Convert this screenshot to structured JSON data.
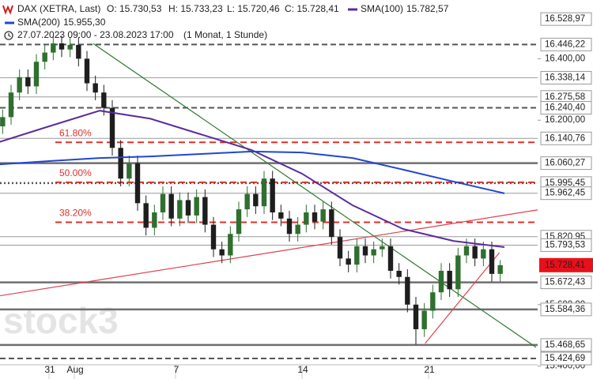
{
  "chart_data": {
    "type": "candlestick",
    "header": {
      "instrument": "DAX (XETRA, Last)",
      "ohlc": [
        "O: 15.730,53",
        "H: 15.733,23",
        "L: 15.720,46",
        "C: 15.728,41"
      ],
      "range": "27.07.2023 09:00 - 23.08.2023 17:00",
      "period": "(1 Monat, 1 Stunde)"
    },
    "watermark": "stock3",
    "up_color": "#2f6f2f",
    "down_color": "#1e1e1e",
    "open": [
      16180,
      16210,
      16290,
      16340,
      16310,
      16390,
      16420,
      16450,
      16430,
      16445,
      16400,
      16320,
      16290,
      16240,
      16110,
      16010,
      16060,
      15930,
      15850,
      15900,
      15960,
      15880,
      15940,
      15890,
      15950,
      15860,
      15780,
      15760,
      15830,
      15910,
      15960,
      15920,
      16010,
      15900,
      15880,
      15830,
      15860,
      15900,
      15870,
      15910,
      15820,
      15750,
      15730,
      15790,
      15760,
      15780,
      15790,
      15710,
      15690,
      15600,
      15520,
      15580,
      15640,
      15710,
      15650,
      15760,
      15790,
      15750,
      15780,
      15700
    ],
    "high": [
      16235,
      16315,
      16365,
      16365,
      16415,
      16445,
      16475,
      16475,
      16470,
      16470,
      16425,
      16345,
      16315,
      16265,
      16135,
      16085,
      16085,
      15955,
      15925,
      15985,
      15985,
      15965,
      15965,
      15975,
      15975,
      15885,
      15805,
      15855,
      15935,
      15985,
      15985,
      16035,
      16035,
      15925,
      15905,
      15885,
      15925,
      15925,
      15935,
      15935,
      15845,
      15775,
      15815,
      15815,
      15805,
      15815,
      15815,
      15735,
      15715,
      15625,
      15605,
      15665,
      15735,
      15735,
      15785,
      15815,
      15815,
      15805,
      15805,
      15745
    ],
    "low": [
      16155,
      16185,
      16265,
      16285,
      16285,
      16365,
      16395,
      16405,
      16405,
      16375,
      16295,
      16265,
      16215,
      16085,
      15985,
      15985,
      15905,
      15825,
      15825,
      15875,
      15855,
      15855,
      15865,
      15865,
      15835,
      15755,
      15735,
      15735,
      15805,
      15885,
      15895,
      15895,
      15875,
      15855,
      15805,
      15805,
      15835,
      15845,
      15845,
      15795,
      15725,
      15705,
      15705,
      15735,
      15735,
      15755,
      15685,
      15665,
      15575,
      15470,
      15495,
      15555,
      15615,
      15625,
      15625,
      15735,
      15725,
      15725,
      15675,
      15675
    ],
    "close": [
      16210,
      16290,
      16340,
      16310,
      16390,
      16420,
      16450,
      16430,
      16445,
      16400,
      16320,
      16290,
      16240,
      16110,
      16010,
      16060,
      15930,
      15850,
      15900,
      15960,
      15880,
      15940,
      15890,
      15950,
      15860,
      15780,
      15760,
      15830,
      15910,
      15960,
      15920,
      16010,
      15900,
      15880,
      15830,
      15860,
      15900,
      15870,
      15910,
      15820,
      15750,
      15730,
      15790,
      15760,
      15780,
      15790,
      15710,
      15690,
      15600,
      15520,
      15580,
      15640,
      15710,
      15650,
      15760,
      15790,
      15750,
      15780,
      15700,
      15728.41
    ],
    "xlim": [
      0,
      60
    ],
    "ylim": [
      15358,
      16591
    ],
    "xticks": [
      {
        "value": 6,
        "label": "31"
      },
      {
        "value": 9,
        "label": "Aug"
      },
      {
        "value": 21,
        "label": "7"
      },
      {
        "value": 36,
        "label": "14"
      },
      {
        "value": 51,
        "label": "21"
      }
    ],
    "yticks": [
      {
        "value": 16400,
        "label": "16.400,00"
      },
      {
        "value": 16200,
        "label": "16.200,00"
      },
      {
        "value": 15600,
        "label": "15.600,00"
      },
      {
        "value": 15400,
        "label": "15.400,00"
      }
    ],
    "levels": [
      {
        "value": 16528.97,
        "label": "16.528,97",
        "style": "none"
      },
      {
        "value": 16446.22,
        "label": "16.446,22",
        "style": "dashed"
      },
      {
        "value": 16338.14,
        "label": "16.338,14",
        "style": "solid"
      },
      {
        "value": 16275.58,
        "label": "16.275,58",
        "style": "solid"
      },
      {
        "value": 16240.4,
        "label": "16.240,40",
        "style": "dashed"
      },
      {
        "value": 16140.76,
        "label": "16.140,76",
        "style": "solid"
      },
      {
        "value": 16060.27,
        "label": "16.060,27",
        "style": "thick"
      },
      {
        "value": 15995.45,
        "label": "15.995,45",
        "style": "dotted"
      },
      {
        "value": 15962.45,
        "label": "15.962,45",
        "style": "solid"
      },
      {
        "value": 15820.95,
        "label": "15.820,95",
        "style": "solid"
      },
      {
        "value": 15793.53,
        "label": "15.793,53",
        "style": "solid"
      },
      {
        "value": 15672.43,
        "label": "15.672,43",
        "style": "thick"
      },
      {
        "value": 15584.36,
        "label": "15.584,36",
        "style": "thick"
      },
      {
        "value": 15468.65,
        "label": "15.468,65",
        "style": "thick"
      },
      {
        "value": 15424.69,
        "label": "15.424,69",
        "style": "dashed"
      }
    ],
    "last_price": {
      "value": 15728.41,
      "label": "15.728,41",
      "color": "#e8101a"
    },
    "fibonacci": [
      {
        "value": 16128,
        "label": "61.80%"
      },
      {
        "value": 15998,
        "label": "50.00%"
      },
      {
        "value": 15868,
        "label": "38.20%"
      }
    ],
    "series": [
      {
        "name": "SMA(100)",
        "color": "#5a2ca0",
        "last_label": "15.782,57",
        "x": [
          0,
          6,
          12,
          18,
          24,
          30,
          36,
          42,
          48,
          54,
          60
        ],
        "values": [
          16128,
          16180,
          16231,
          16205,
          16154,
          16103,
          16026,
          15923,
          15846,
          15807,
          15787
        ]
      },
      {
        "name": "SMA(200)",
        "color": "#2046d6",
        "last_label": "15.955,30",
        "x": [
          0,
          6,
          12,
          18,
          24,
          30,
          36,
          42,
          48,
          54,
          60
        ],
        "values": [
          16056,
          16067,
          16077,
          16082,
          16090,
          16098,
          16095,
          16077,
          16039,
          16000,
          15962
        ]
      }
    ],
    "trendlines": [
      {
        "color": "#2f7a2f",
        "x": [
          11.25,
          63.75
        ],
        "values": [
          16449,
          15461
        ]
      },
      {
        "color": "#e04050",
        "x": [
          0,
          70.3
        ],
        "values": [
          15628,
          15936
        ]
      },
      {
        "color": "#e04050",
        "x": [
          50.6,
          59.4
        ],
        "values": [
          15474,
          15769
        ]
      }
    ]
  }
}
